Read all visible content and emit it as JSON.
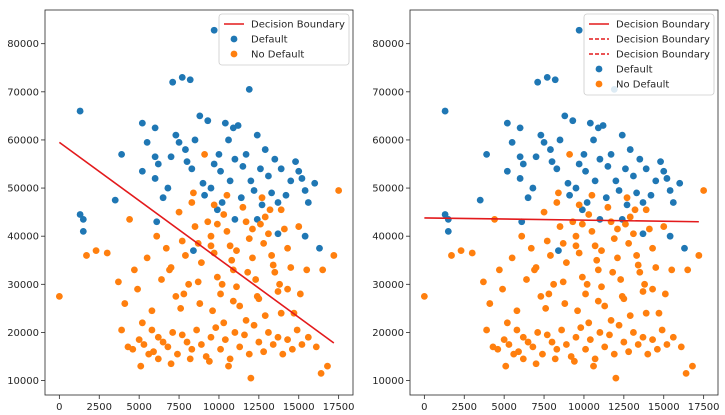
{
  "colors": {
    "default": "#1f77b4",
    "no_default": "#ff7f0e",
    "boundary": "#e31a1c"
  },
  "chart_data": [
    {
      "type": "scatter",
      "xlim": [
        -900,
        18400
      ],
      "ylim": [
        7000,
        87000
      ],
      "xticks": [
        0,
        2500,
        5000,
        7500,
        10000,
        12500,
        15000,
        17500
      ],
      "yticks": [
        10000,
        20000,
        30000,
        40000,
        50000,
        60000,
        70000,
        80000
      ],
      "legend": {
        "position": "top-right",
        "entries": [
          "Decision Boundary",
          "Default",
          "No Default"
        ]
      },
      "lines": [
        {
          "name": "Decision Boundary",
          "style": "solid",
          "x": [
            0,
            17200
          ],
          "y": [
            59500,
            17800
          ]
        }
      ]
    },
    {
      "type": "scatter",
      "xlim": [
        -900,
        18400
      ],
      "ylim": [
        7000,
        87000
      ],
      "xticks": [
        0,
        2500,
        5000,
        7500,
        10000,
        12500,
        15000,
        17500
      ],
      "yticks": [
        10000,
        20000,
        30000,
        40000,
        50000,
        60000,
        70000,
        80000
      ],
      "legend": {
        "position": "top-right",
        "entries": [
          "Decision Boundary",
          "Decision Boundary",
          "Decision Boundary",
          "Default",
          "No Default"
        ]
      },
      "lines": [
        {
          "name": "Decision Boundary",
          "style": "solid",
          "x": [
            0,
            17200
          ],
          "y": [
            43800,
            43000
          ]
        }
      ]
    }
  ],
  "scatter": {
    "default": [
      [
        1300,
        66000
      ],
      [
        1300,
        44500
      ],
      [
        1500,
        43500
      ],
      [
        1500,
        41000
      ],
      [
        3500,
        47500
      ],
      [
        3900,
        57000
      ],
      [
        5200,
        63500
      ],
      [
        5200,
        53500
      ],
      [
        5500,
        59500
      ],
      [
        6000,
        62500
      ],
      [
        6000,
        56500
      ],
      [
        6000,
        52000
      ],
      [
        6200,
        55000
      ],
      [
        6500,
        48000
      ],
      [
        6800,
        50000
      ],
      [
        7000,
        56500
      ],
      [
        7100,
        72000
      ],
      [
        7300,
        61000
      ],
      [
        7500,
        59500
      ],
      [
        7700,
        73000
      ],
      [
        7900,
        58000
      ],
      [
        8000,
        55500
      ],
      [
        8200,
        72500
      ],
      [
        8300,
        54000
      ],
      [
        8500,
        60000
      ],
      [
        8800,
        65000
      ],
      [
        9000,
        51000
      ],
      [
        9100,
        48500
      ],
      [
        9300,
        64000
      ],
      [
        9500,
        50000
      ],
      [
        9700,
        55000
      ],
      [
        9900,
        45500
      ],
      [
        10000,
        57000
      ],
      [
        10100,
        53500
      ],
      [
        10200,
        47000
      ],
      [
        10400,
        63500
      ],
      [
        10600,
        60000
      ],
      [
        10700,
        51500
      ],
      [
        10900,
        62500
      ],
      [
        11000,
        56000
      ],
      [
        11200,
        63000
      ],
      [
        11400,
        48000
      ],
      [
        11500,
        54500
      ],
      [
        11700,
        57000
      ],
      [
        11900,
        70500
      ],
      [
        12000,
        51500
      ],
      [
        12200,
        49500
      ],
      [
        12400,
        61000
      ],
      [
        12600,
        54000
      ],
      [
        12700,
        46500
      ],
      [
        12900,
        58000
      ],
      [
        13100,
        52500
      ],
      [
        13300,
        49000
      ],
      [
        13500,
        56000
      ],
      [
        13700,
        47000
      ],
      [
        13900,
        54000
      ],
      [
        14200,
        48500
      ],
      [
        14500,
        51500
      ],
      [
        14800,
        55500
      ],
      [
        15000,
        53500
      ],
      [
        15200,
        52000
      ],
      [
        15400,
        49500
      ],
      [
        15600,
        47000
      ],
      [
        16000,
        51000
      ],
      [
        16300,
        37500
      ],
      [
        8400,
        37000
      ],
      [
        9700,
        82800
      ],
      [
        11000,
        43500
      ],
      [
        12400,
        43500
      ],
      [
        13700,
        40500
      ],
      [
        15400,
        40000
      ],
      [
        6100,
        43000
      ]
    ],
    "no_default": [
      [
        0,
        27500
      ],
      [
        1700,
        36000
      ],
      [
        2300,
        37000
      ],
      [
        3000,
        36500
      ],
      [
        3700,
        30500
      ],
      [
        4100,
        26000
      ],
      [
        4400,
        43500
      ],
      [
        4700,
        33000
      ],
      [
        4900,
        29000
      ],
      [
        5200,
        22000
      ],
      [
        5500,
        35500
      ],
      [
        5800,
        24500
      ],
      [
        6100,
        40000
      ],
      [
        6400,
        31000
      ],
      [
        6700,
        37500
      ],
      [
        7000,
        33500
      ],
      [
        7300,
        27500
      ],
      [
        7500,
        45000
      ],
      [
        7700,
        39000
      ],
      [
        7900,
        36000
      ],
      [
        8100,
        30000
      ],
      [
        8300,
        47000
      ],
      [
        8500,
        42000
      ],
      [
        8700,
        38500
      ],
      [
        8900,
        34500
      ],
      [
        9100,
        57000
      ],
      [
        9300,
        43000
      ],
      [
        9500,
        40000
      ],
      [
        9700,
        36500
      ],
      [
        9900,
        31500
      ],
      [
        10100,
        28000
      ],
      [
        10300,
        44500
      ],
      [
        10500,
        41000
      ],
      [
        10700,
        38000
      ],
      [
        10900,
        33000
      ],
      [
        11100,
        29500
      ],
      [
        11300,
        25500
      ],
      [
        11500,
        46000
      ],
      [
        11700,
        43000
      ],
      [
        11900,
        39500
      ],
      [
        12100,
        35500
      ],
      [
        12300,
        31000
      ],
      [
        12500,
        27000
      ],
      [
        12700,
        48000
      ],
      [
        12900,
        44000
      ],
      [
        13100,
        40500
      ],
      [
        13300,
        36000
      ],
      [
        13500,
        32500
      ],
      [
        13700,
        28500
      ],
      [
        13900,
        45500
      ],
      [
        14100,
        41500
      ],
      [
        14300,
        37500
      ],
      [
        14500,
        33500
      ],
      [
        14700,
        24000
      ],
      [
        15000,
        42000
      ],
      [
        15500,
        33000
      ],
      [
        16500,
        33000
      ],
      [
        17200,
        36000
      ],
      [
        17500,
        49500
      ],
      [
        5800,
        20500
      ],
      [
        4300,
        17000
      ],
      [
        4600,
        16500
      ],
      [
        5000,
        18500
      ],
      [
        5300,
        17500
      ],
      [
        5600,
        15500
      ],
      [
        5900,
        16000
      ],
      [
        6200,
        19000
      ],
      [
        6500,
        18000
      ],
      [
        6800,
        17000
      ],
      [
        7100,
        20000
      ],
      [
        7400,
        15500
      ],
      [
        7700,
        19500
      ],
      [
        8000,
        18000
      ],
      [
        8300,
        16500
      ],
      [
        8600,
        20500
      ],
      [
        8900,
        17500
      ],
      [
        9200,
        15000
      ],
      [
        9500,
        19000
      ],
      [
        9800,
        21000
      ],
      [
        10100,
        16500
      ],
      [
        10400,
        18500
      ],
      [
        10700,
        14500
      ],
      [
        11000,
        20000
      ],
      [
        11300,
        17000
      ],
      [
        11600,
        19500
      ],
      [
        11900,
        15500
      ],
      [
        12200,
        21500
      ],
      [
        12500,
        18000
      ],
      [
        12800,
        16000
      ],
      [
        13100,
        20000
      ],
      [
        13400,
        17500
      ],
      [
        13700,
        19000
      ],
      [
        14000,
        15500
      ],
      [
        14300,
        18500
      ],
      [
        14600,
        16500
      ],
      [
        14900,
        20500
      ],
      [
        15200,
        17500
      ],
      [
        15600,
        19000
      ],
      [
        16100,
        17000
      ],
      [
        16400,
        11500
      ],
      [
        16800,
        13000
      ],
      [
        12000,
        10500
      ],
      [
        10600,
        13000
      ],
      [
        9400,
        14000
      ],
      [
        8200,
        14500
      ],
      [
        7000,
        13500
      ],
      [
        6200,
        14500
      ],
      [
        5100,
        13000
      ],
      [
        11700,
        22500
      ],
      [
        10300,
        22000
      ],
      [
        13900,
        24000
      ],
      [
        12900,
        23500
      ],
      [
        9600,
        24500
      ],
      [
        8800,
        26000
      ],
      [
        10900,
        26500
      ],
      [
        12400,
        27500
      ],
      [
        14300,
        29000
      ],
      [
        7800,
        28000
      ],
      [
        11800,
        32500
      ],
      [
        13400,
        34000
      ],
      [
        9500,
        38000
      ],
      [
        10800,
        35000
      ],
      [
        6900,
        33000
      ],
      [
        7600,
        25000
      ],
      [
        13800,
        30000
      ],
      [
        15100,
        28000
      ],
      [
        3900,
        20500
      ],
      [
        8700,
        30500
      ],
      [
        10200,
        30000
      ],
      [
        11100,
        37000
      ],
      [
        12100,
        41500
      ],
      [
        12800,
        38500
      ],
      [
        9900,
        42500
      ],
      [
        8400,
        49000
      ],
      [
        10500,
        48500
      ],
      [
        9700,
        46500
      ],
      [
        13200,
        45500
      ],
      [
        12600,
        42500
      ]
    ]
  }
}
